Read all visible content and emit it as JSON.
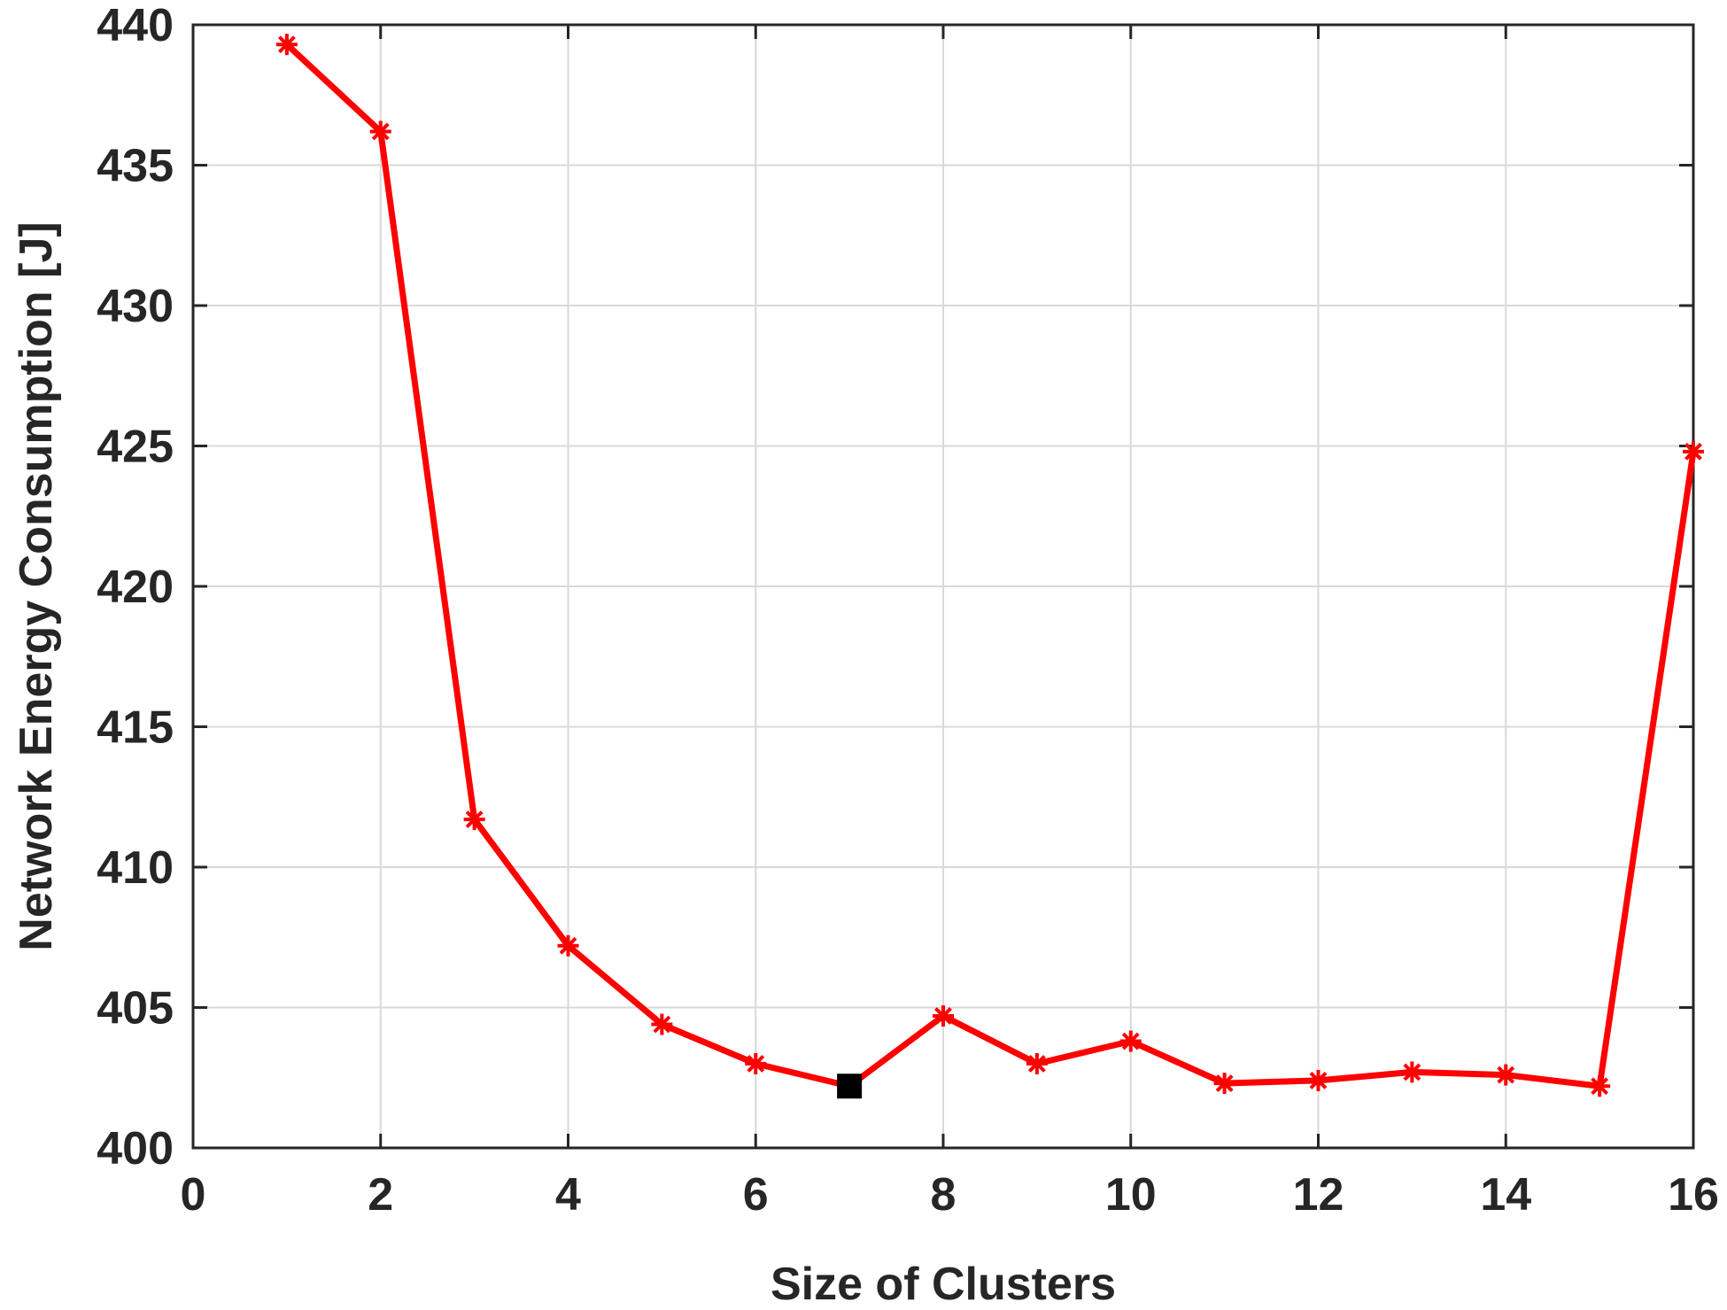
{
  "chart_data": {
    "type": "line",
    "title": "",
    "xlabel": "Size of Clusters",
    "ylabel": "Network Energy Consumption [J]",
    "xlim": [
      0,
      16
    ],
    "ylim": [
      400,
      440
    ],
    "xticks": [
      0,
      2,
      4,
      6,
      8,
      10,
      12,
      14,
      16
    ],
    "yticks": [
      400,
      405,
      410,
      415,
      420,
      425,
      430,
      435,
      440
    ],
    "grid": true,
    "series": [
      {
        "color": "#ff0000",
        "marker": "asterisk",
        "x": [
          1,
          2,
          3,
          4,
          5,
          6,
          7,
          8,
          9,
          10,
          11,
          12,
          13,
          14,
          15,
          16
        ],
        "y": [
          439.3,
          436.2,
          411.7,
          407.2,
          404.4,
          403.0,
          402.2,
          404.7,
          403.0,
          403.8,
          402.3,
          402.4,
          402.7,
          402.6,
          402.2,
          424.8
        ]
      }
    ],
    "highlight": {
      "x": 7,
      "y": 402.2,
      "color": "#000000",
      "marker": "square"
    }
  }
}
